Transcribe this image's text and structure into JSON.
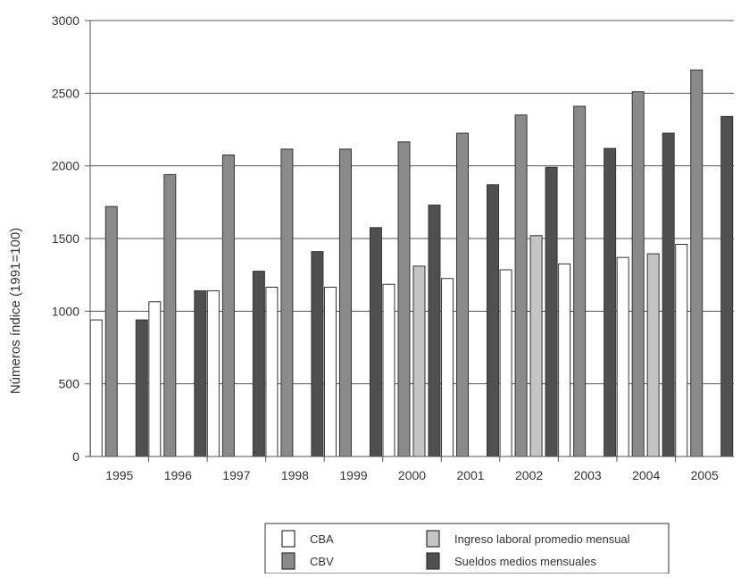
{
  "chart_data": {
    "type": "bar",
    "title": "",
    "xlabel": "",
    "ylabel": "Números índice (1991=100)",
    "ylim": [
      0,
      3000
    ],
    "yticks": [
      0,
      500,
      1000,
      1500,
      2000,
      2500,
      3000
    ],
    "grid": true,
    "legend_placement": "bottom-center",
    "categories": [
      "1995",
      "1996",
      "1997",
      "1998",
      "1999",
      "2000",
      "2001",
      "2002",
      "2003",
      "2004",
      "2005"
    ],
    "series": [
      {
        "name": "CBA",
        "color": "#ffffff",
        "values": [
          940,
          1065,
          1140,
          1165,
          1165,
          1185,
          1225,
          1285,
          1325,
          1370,
          1460
        ]
      },
      {
        "name": "CBV",
        "color": "#8a8a8a",
        "values": [
          1720,
          1940,
          2075,
          2115,
          2115,
          2165,
          2225,
          2350,
          2410,
          2510,
          2660
        ]
      },
      {
        "name": "Ingreso laboral promedio mensual",
        "color": "#c4c4c4",
        "values": [
          null,
          null,
          null,
          null,
          null,
          1310,
          null,
          1520,
          null,
          1395,
          null
        ]
      },
      {
        "name": "Sueldos medios mensuales",
        "color": "#505050",
        "values": [
          940,
          1140,
          1275,
          1410,
          1575,
          1730,
          1870,
          1990,
          2120,
          2225,
          2340
        ]
      }
    ]
  }
}
